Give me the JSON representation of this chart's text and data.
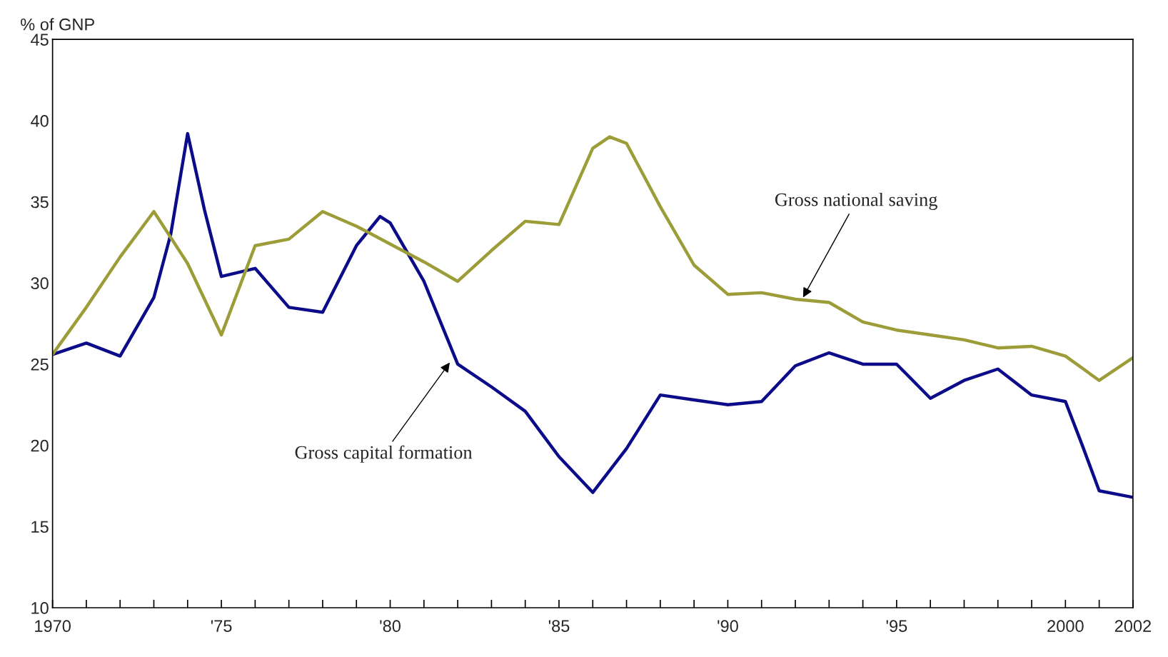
{
  "chart_data": {
    "type": "line",
    "ylabel": "% of GNP",
    "xlim": [
      1970,
      2002
    ],
    "ylim": [
      10,
      45
    ],
    "yticks": [
      10,
      15,
      20,
      25,
      30,
      35,
      40,
      45
    ],
    "xticks": [
      {
        "value": 1970,
        "label": "1970"
      },
      {
        "value": 1971,
        "label": null
      },
      {
        "value": 1972,
        "label": null
      },
      {
        "value": 1973,
        "label": null
      },
      {
        "value": 1974,
        "label": null
      },
      {
        "value": 1975,
        "label": "'75"
      },
      {
        "value": 1976,
        "label": null
      },
      {
        "value": 1977,
        "label": null
      },
      {
        "value": 1978,
        "label": null
      },
      {
        "value": 1979,
        "label": null
      },
      {
        "value": 1980,
        "label": "'80"
      },
      {
        "value": 1981,
        "label": null
      },
      {
        "value": 1982,
        "label": null
      },
      {
        "value": 1983,
        "label": null
      },
      {
        "value": 1984,
        "label": null
      },
      {
        "value": 1985,
        "label": "'85"
      },
      {
        "value": 1986,
        "label": null
      },
      {
        "value": 1987,
        "label": null
      },
      {
        "value": 1988,
        "label": null
      },
      {
        "value": 1989,
        "label": null
      },
      {
        "value": 1990,
        "label": "'90"
      },
      {
        "value": 1991,
        "label": null
      },
      {
        "value": 1992,
        "label": null
      },
      {
        "value": 1993,
        "label": null
      },
      {
        "value": 1994,
        "label": null
      },
      {
        "value": 1995,
        "label": "'95"
      },
      {
        "value": 1996,
        "label": null
      },
      {
        "value": 1997,
        "label": null
      },
      {
        "value": 1998,
        "label": null
      },
      {
        "value": 1999,
        "label": null
      },
      {
        "value": 2000,
        "label": "2000"
      },
      {
        "value": 2001,
        "label": null
      },
      {
        "value": 2002,
        "label": "2002"
      }
    ],
    "grid": false,
    "legend": false,
    "marker": "none",
    "line_style": "solid",
    "series": [
      {
        "color": "#0c0c8a",
        "x": [
          1970,
          1971,
          1972,
          1973,
          1973.5,
          1974,
          1974.5,
          1975,
          1976,
          1977,
          1978,
          1979,
          1979.7,
          1980,
          1981,
          1982,
          1983,
          1984,
          1985,
          1986,
          1987,
          1988,
          1989,
          1990,
          1991,
          1992,
          1993,
          1994,
          1995,
          1996,
          1997,
          1998,
          1999,
          2000,
          2000.5,
          2001,
          2002
        ],
        "values": [
          25.6,
          26.3,
          25.5,
          29.1,
          33.0,
          39.2,
          34.5,
          30.4,
          30.9,
          28.5,
          28.2,
          32.3,
          34.1,
          33.7,
          30.1,
          25.0,
          23.6,
          22.1,
          19.3,
          17.1,
          19.8,
          23.1,
          22.8,
          22.5,
          22.7,
          24.9,
          25.7,
          25.0,
          25.0,
          22.9,
          24.0,
          24.7,
          23.1,
          22.7,
          20.0,
          17.2,
          16.8
        ]
      },
      {
        "color": "#9c9c38",
        "x": [
          1970,
          1971,
          1972,
          1973,
          1974,
          1975,
          1976,
          1977,
          1978,
          1979,
          1980,
          1981,
          1982,
          1983,
          1984,
          1985,
          1986,
          1986.5,
          1987,
          1988,
          1989,
          1990,
          1991,
          1992,
          1993,
          1994,
          1995,
          1996,
          1997,
          1998,
          1999,
          2000,
          2001,
          2002
        ],
        "values": [
          25.6,
          28.5,
          31.6,
          34.4,
          31.2,
          26.8,
          32.3,
          32.7,
          34.4,
          33.5,
          32.4,
          31.3,
          30.1,
          32.0,
          33.8,
          33.6,
          38.3,
          39.0,
          38.6,
          34.7,
          31.1,
          29.3,
          29.4,
          29.0,
          28.8,
          27.6,
          27.1,
          26.8,
          26.5,
          26.0,
          26.1,
          25.5,
          24.0,
          25.4
        ]
      }
    ],
    "annotations": [
      {
        "text": "Gross national saving",
        "x": 1992.2,
        "y": 29.0
      },
      {
        "text": "Gross capital formation",
        "x": 1981.8,
        "y": 25.2
      }
    ]
  }
}
